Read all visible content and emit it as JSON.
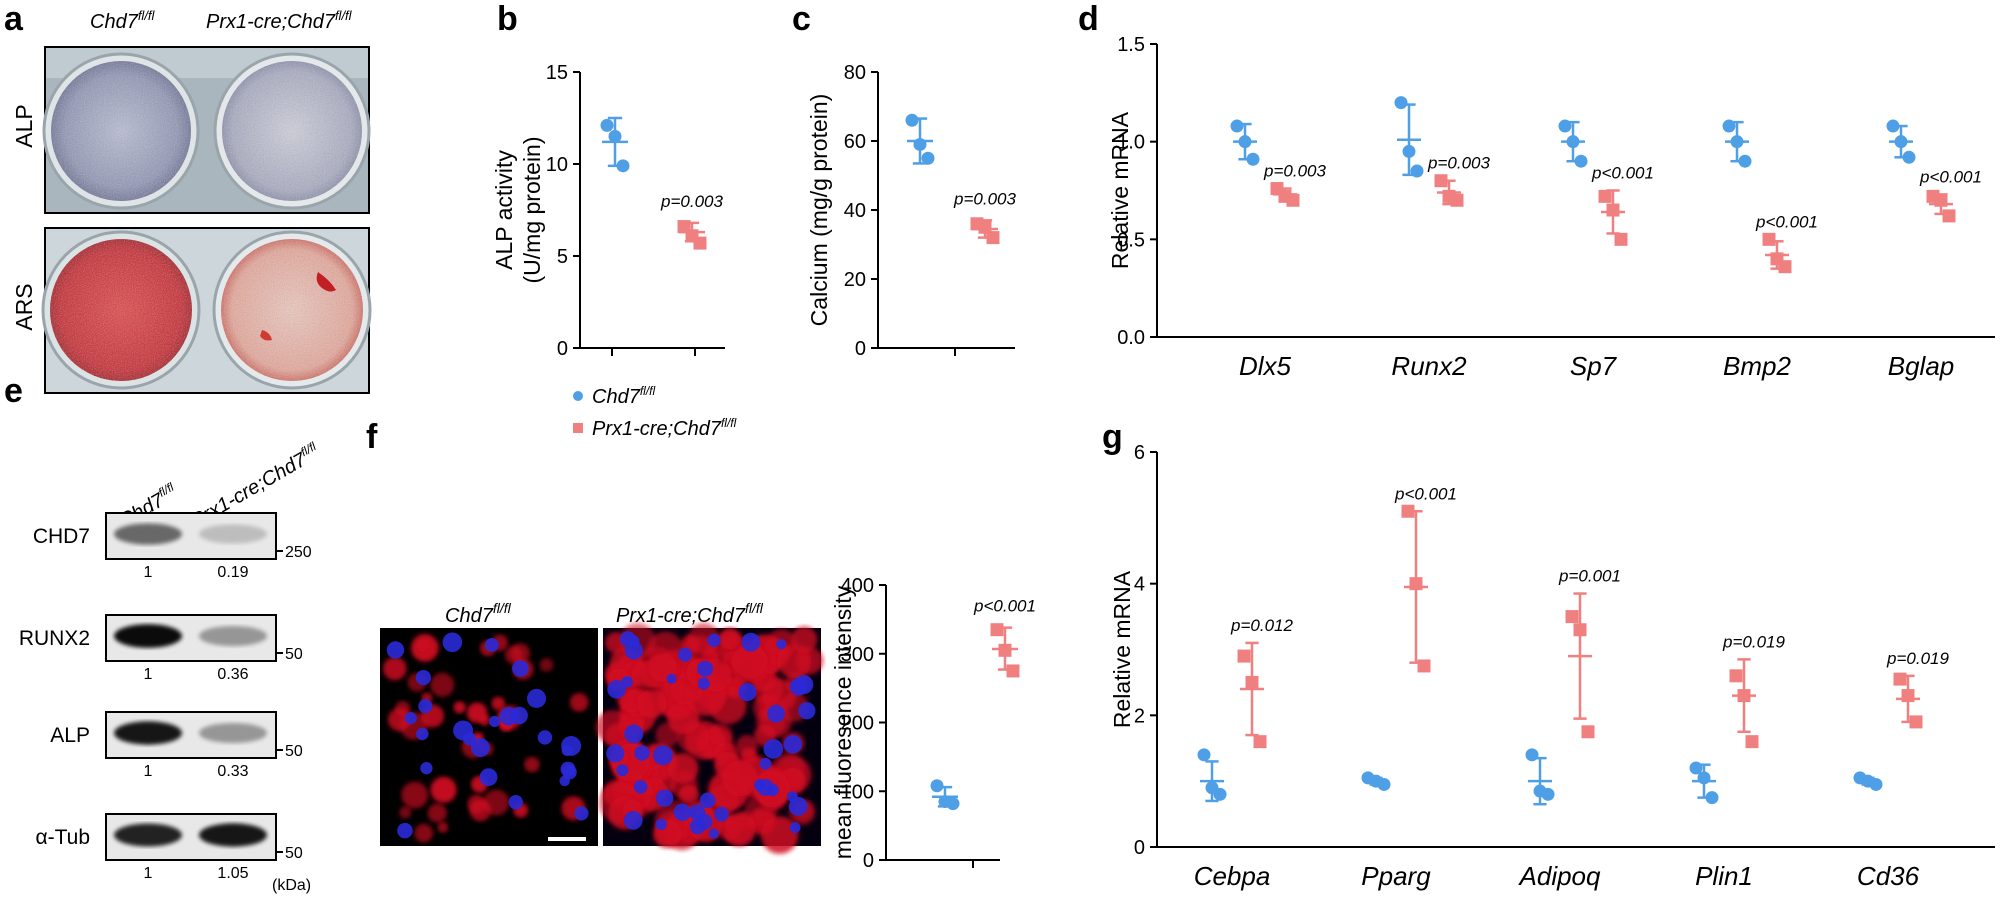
{
  "panel_labels": {
    "a": "a",
    "b": "b",
    "c": "c",
    "d": "d",
    "e": "e",
    "f": "f",
    "g": "g"
  },
  "genotype": {
    "control": "Chd7",
    "control_sup": "fl/fl",
    "mutant_prefix": "Prx1-cre;Chd7",
    "mutant_sup": "fl/fl"
  },
  "colors": {
    "control": "#4f9fe6",
    "mutant": "#f08080"
  },
  "panel_a": {
    "row1_label": "ALP",
    "row2_label": "ARS"
  },
  "legend": {
    "items": [
      "Chd7fl/fl",
      "Prx1-cre;Chd7fl/fl"
    ]
  },
  "chart_data": [
    {
      "id": "b",
      "type": "scatter",
      "ylabel_line1": "ALP activity",
      "ylabel_line2": "(U/mg protein)",
      "ylim": [
        0,
        15
      ],
      "yticks": [
        0,
        5,
        10,
        15
      ],
      "groups": [
        {
          "name": "Chd7fl/fl",
          "values": [
            12.1,
            11.5,
            9.9
          ],
          "mean": 11.2,
          "sd_low": 9.9,
          "sd_high": 12.5
        },
        {
          "name": "Prx1-cre;Chd7fl/fl",
          "values": [
            6.6,
            6.1,
            5.7
          ],
          "mean": 6.3,
          "sd_low": 5.8,
          "sd_high": 6.8,
          "p": "p=0.003"
        }
      ]
    },
    {
      "id": "c",
      "type": "scatter",
      "ylabel": "Calcium (mg/g protein)",
      "ylim": [
        0,
        80
      ],
      "yticks": [
        0,
        20,
        40,
        60,
        80
      ],
      "groups": [
        {
          "name": "Chd7fl/fl",
          "values": [
            66,
            59,
            55
          ],
          "mean": 60,
          "sd_low": 53.5,
          "sd_high": 66.5
        },
        {
          "name": "Prx1-cre;Chd7fl/fl",
          "values": [
            36,
            35,
            32
          ],
          "mean": 34.5,
          "sd_low": 32,
          "sd_high": 37,
          "p": "p=0.003"
        }
      ]
    },
    {
      "id": "d",
      "type": "scatter",
      "ylabel": "Relative mRNA",
      "ylim": [
        0,
        1.5
      ],
      "yticks": [
        "0.0",
        "0.5",
        "1.0",
        "1.5"
      ],
      "categories": [
        "Dlx5",
        "Runx2",
        "Sp7",
        "Bmp2",
        "Bglap"
      ],
      "series": [
        {
          "name": "Chd7fl/fl",
          "values": [
            [
              1.08,
              1.0,
              0.91
            ],
            [
              1.2,
              0.95,
              0.85
            ],
            [
              1.08,
              1.0,
              0.9
            ],
            [
              1.08,
              1.0,
              0.9
            ],
            [
              1.08,
              1.0,
              0.92
            ]
          ],
          "mean": [
            1.0,
            1.01,
            1.0,
            1.0,
            1.0
          ],
          "sd": [
            0.09,
            0.18,
            0.1,
            0.1,
            0.08
          ]
        },
        {
          "name": "Prx1-cre;Chd7fl/fl",
          "values": [
            [
              0.76,
              0.72,
              0.7
            ],
            [
              0.8,
              0.72,
              0.7
            ],
            [
              0.72,
              0.65,
              0.5
            ],
            [
              0.5,
              0.4,
              0.36
            ],
            [
              0.72,
              0.7,
              0.62
            ]
          ],
          "mean": [
            0.73,
            0.74,
            0.64,
            0.42,
            0.68
          ],
          "sd": [
            0.03,
            0.06,
            0.11,
            0.07,
            0.05
          ],
          "p": [
            "p=0.003",
            "p=0.003",
            "p<0.001",
            "p<0.001",
            "p<0.001"
          ]
        }
      ]
    },
    {
      "id": "f",
      "type": "scatter",
      "ylabel": "mean fluoresence intensity",
      "ylim": [
        0,
        400
      ],
      "yticks": [
        0,
        100,
        200,
        300,
        400
      ],
      "groups": [
        {
          "name": "Chd7fl/fl",
          "values": [
            108,
            85,
            82
          ],
          "mean": 92,
          "sd_low": 78,
          "sd_high": 106
        },
        {
          "name": "Prx1-cre;Chd7fl/fl",
          "values": [
            335,
            305,
            275
          ],
          "mean": 307,
          "sd_low": 277,
          "sd_high": 338,
          "p": "p<0.001"
        }
      ]
    },
    {
      "id": "g",
      "type": "scatter",
      "ylabel": "Relative mRNA",
      "ylim": [
        0,
        6
      ],
      "yticks": [
        0,
        2,
        4,
        6
      ],
      "categories": [
        "Cebpa",
        "Pparg",
        "Adipoq",
        "Plin1",
        "Cd36"
      ],
      "series": [
        {
          "name": "Chd7fl/fl",
          "values": [
            [
              1.4,
              0.9,
              0.8
            ],
            [
              1.05,
              1.0,
              0.95
            ],
            [
              1.4,
              0.85,
              0.8
            ],
            [
              1.2,
              1.05,
              0.75
            ],
            [
              1.05,
              1.0,
              0.95
            ]
          ],
          "mean": [
            1.0,
            1.0,
            1.0,
            1.0,
            1.0
          ],
          "sd": [
            0.3,
            0.05,
            0.35,
            0.25,
            0.05
          ]
        },
        {
          "name": "Prx1-cre;Chd7fl/fl",
          "values": [
            [
              2.9,
              2.5,
              1.6
            ],
            [
              5.1,
              4.0,
              2.75
            ],
            [
              3.5,
              3.3,
              1.75
            ],
            [
              2.6,
              2.3,
              1.6
            ],
            [
              2.55,
              2.3,
              1.9
            ]
          ],
          "mean": [
            2.4,
            3.95,
            2.9,
            2.3,
            2.25
          ],
          "sd": [
            0.7,
            1.15,
            0.95,
            0.55,
            0.35
          ],
          "p": [
            "p=0.012",
            "p<0.001",
            "p=0.001",
            "p=0.019",
            "p=0.019"
          ]
        }
      ]
    }
  ],
  "panel_e": {
    "rows": [
      {
        "label": "CHD7",
        "q": [
          "1",
          "0.19"
        ],
        "marker": "250"
      },
      {
        "label": "RUNX2",
        "q": [
          "1",
          "0.36"
        ],
        "marker": "50"
      },
      {
        "label": "ALP",
        "q": [
          "1",
          "0.33"
        ],
        "marker": "50"
      },
      {
        "label": "α-Tub",
        "q": [
          "1",
          "1.05"
        ],
        "marker": "50"
      }
    ],
    "unit": "(kDa)"
  }
}
